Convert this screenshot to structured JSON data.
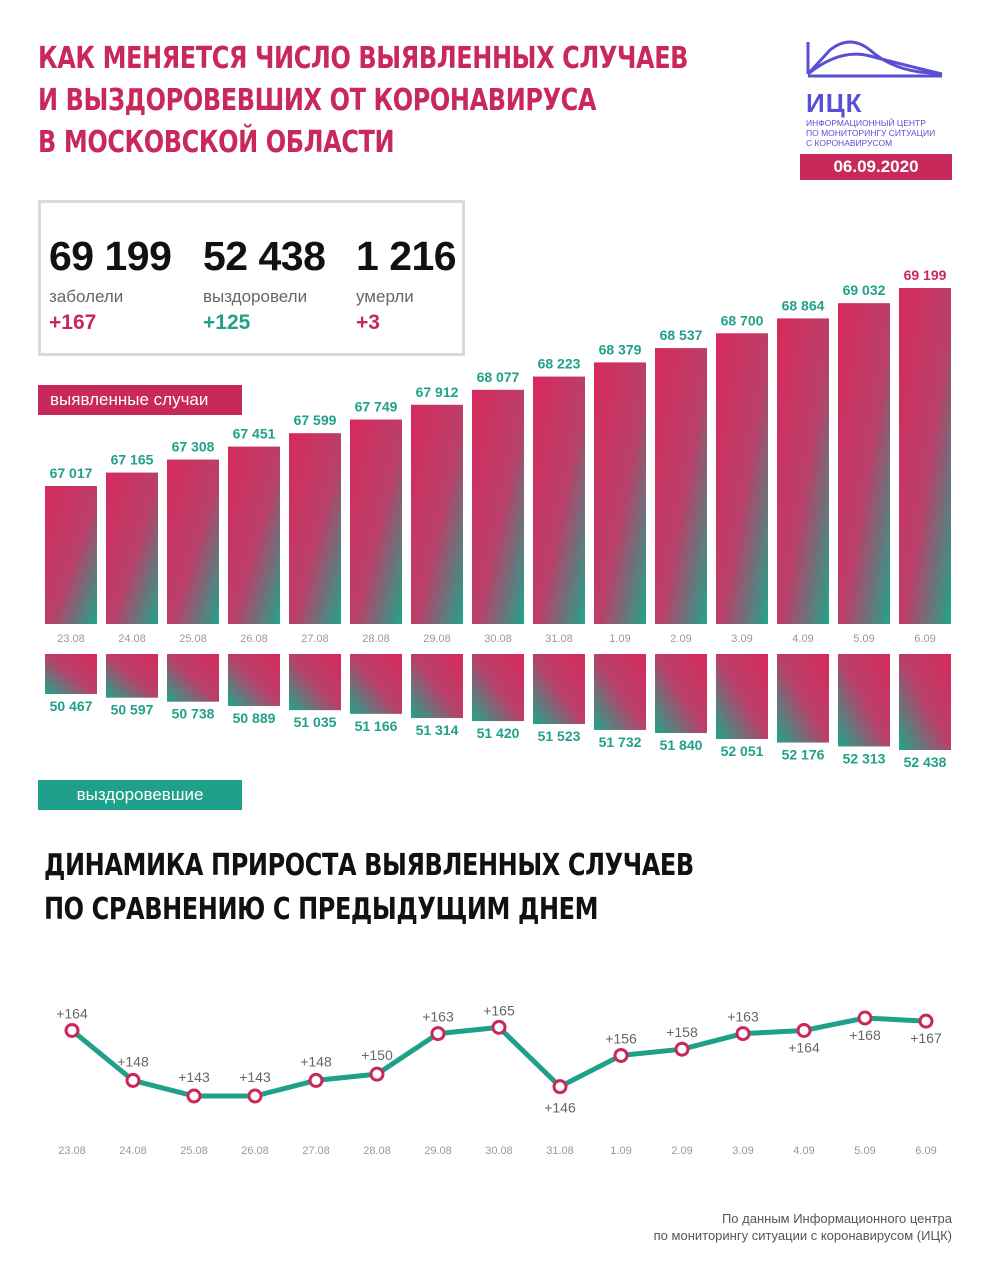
{
  "header": {
    "title_lines": [
      "КАК МЕНЯЕТСЯ ЧИСЛО ВЫЯВЛЕННЫХ СЛУЧАЕВ",
      "И ВЫЗДОРОВЕВШИХ ОТ КОРОНАВИРУСА",
      "В МОСКОВСКОЙ ОБЛАСТИ"
    ],
    "logo_abbr": "ИЦК",
    "logo_sub_lines": [
      "ИНФОРМАЦИОННЫЙ ЦЕНТР",
      "ПО МОНИТОРИНГУ СИТУАЦИИ",
      "С КОРОНАВИРУСОМ"
    ],
    "date": "06.09.2020"
  },
  "stats": [
    {
      "value": "69 199",
      "label": "заболели",
      "delta": "+167"
    },
    {
      "value": "52 438",
      "label": "выздоровели",
      "delta": "+125"
    },
    {
      "value": "1 216",
      "label": "умерли",
      "delta": "+3"
    }
  ],
  "colors": {
    "red": "#c8285a",
    "teal": "#1fa08a"
  },
  "chart_data": [
    {
      "type": "bar",
      "categories": [
        "23.08",
        "24.08",
        "25.08",
        "26.08",
        "27.08",
        "28.08",
        "29.08",
        "30.08",
        "31.08",
        "1.09",
        "2.09",
        "3.09",
        "4.09",
        "5.09",
        "6.09"
      ],
      "series": [
        {
          "name": "выявленные случаи",
          "values": [
            67017,
            67165,
            67308,
            67451,
            67599,
            67749,
            67912,
            68077,
            68223,
            68379,
            68537,
            68700,
            68864,
            69032,
            69199
          ],
          "labels": [
            "67 017",
            "67 165",
            "67 308",
            "67 451",
            "67 599",
            "67 749",
            "67 912",
            "68 077",
            "68 223",
            "68 379",
            "68 537",
            "68 700",
            "68 864",
            "69 032",
            "69 199"
          ]
        },
        {
          "name": "выздоровевшие",
          "values": [
            50467,
            50597,
            50738,
            50889,
            51035,
            51166,
            51314,
            51420,
            51523,
            51732,
            51840,
            52051,
            52176,
            52313,
            52438
          ],
          "labels": [
            "50 467",
            "50 597",
            "50 738",
            "50 889",
            "51 035",
            "51 166",
            "51 314",
            "51 420",
            "51 523",
            "51 732",
            "51 840",
            "52 051",
            "52 176",
            "52 313",
            "52 438"
          ]
        }
      ]
    },
    {
      "type": "line",
      "title_lines": [
        "ДИНАМИКА ПРИРОСТА ВЫЯВЛЕННЫХ СЛУЧАЕВ",
        "ПО СРАВНЕНИЮ С ПРЕДЫДУЩИМ ДНЕМ"
      ],
      "categories": [
        "23.08",
        "24.08",
        "25.08",
        "26.08",
        "27.08",
        "28.08",
        "29.08",
        "30.08",
        "31.08",
        "1.09",
        "2.09",
        "3.09",
        "4.09",
        "5.09",
        "6.09"
      ],
      "values": [
        164,
        148,
        143,
        143,
        148,
        150,
        163,
        165,
        146,
        156,
        158,
        163,
        164,
        168,
        167
      ],
      "labels": [
        "+164",
        "+148",
        "+143",
        "+143",
        "+148",
        "+150",
        "+163",
        "+165",
        "+146",
        "+156",
        "+158",
        "+163",
        "+164",
        "+168",
        "+167"
      ]
    }
  ],
  "footer": {
    "source_lines": [
      "По данным Информационного центра",
      "по мониторингу ситуации с коронавирусом (ИЦК)"
    ]
  }
}
